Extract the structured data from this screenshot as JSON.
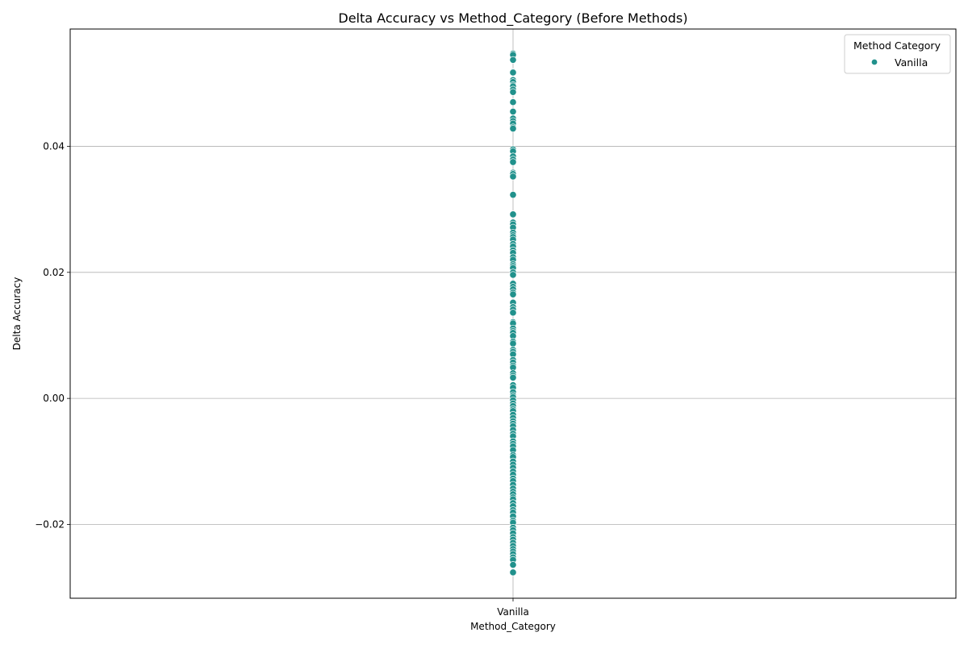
{
  "chart_data": {
    "type": "scatter",
    "title": "Delta Accuracy vs Method_Category (Before Methods)",
    "xlabel": "Method_Category",
    "ylabel": "Delta Accuracy",
    "categories": [
      "Vanilla"
    ],
    "ylim": [
      -0.0317,
      0.0586
    ],
    "yticks": [
      -0.02,
      0.0,
      0.02,
      0.04
    ],
    "ytick_labels": [
      "−0.02",
      "0.00",
      "0.02",
      "0.04"
    ],
    "grid": true,
    "legend": {
      "title": "Method Category",
      "placement": "top-right",
      "entries": [
        "Vanilla"
      ]
    },
    "series": [
      {
        "name": "Vanilla",
        "color": "#21918c",
        "category": "Vanilla",
        "values": [
          0.0547,
          0.0545,
          0.0537,
          0.0518,
          0.0517,
          0.0505,
          0.0502,
          0.0497,
          0.0495,
          0.049,
          0.0486,
          0.047,
          0.0455,
          0.0444,
          0.044,
          0.0436,
          0.043,
          0.0428,
          0.0395,
          0.0392,
          0.0384,
          0.0379,
          0.0375,
          0.0358,
          0.0356,
          0.0352,
          0.0323,
          0.0292,
          0.0279,
          0.0276,
          0.0271,
          0.0263,
          0.0259,
          0.0256,
          0.0252,
          0.0245,
          0.0241,
          0.0235,
          0.0231,
          0.0224,
          0.022,
          0.0213,
          0.021,
          0.0207,
          0.02,
          0.0196,
          0.0182,
          0.0177,
          0.0173,
          0.0168,
          0.0165,
          0.0152,
          0.0145,
          0.0141,
          0.0136,
          0.0121,
          0.0119,
          0.0111,
          0.0107,
          0.0104,
          0.0099,
          0.009,
          0.0087,
          0.0077,
          0.0074,
          0.007,
          0.0061,
          0.0057,
          0.0052,
          0.0049,
          0.004,
          0.0036,
          0.0033,
          0.0021,
          0.0017,
          0.001,
          0.0005,
          0.0002,
          -0.0003,
          -0.0008,
          -0.0012,
          -0.0017,
          -0.002,
          -0.0026,
          -0.0031,
          -0.0036,
          -0.004,
          -0.0044,
          -0.005,
          -0.0056,
          -0.006,
          -0.0068,
          -0.0072,
          -0.0076,
          -0.0082,
          -0.009,
          -0.0093,
          -0.01,
          -0.0105,
          -0.011,
          -0.0116,
          -0.0121,
          -0.0127,
          -0.0131,
          -0.0137,
          -0.0143,
          -0.0148,
          -0.0152,
          -0.0157,
          -0.016,
          -0.0166,
          -0.0171,
          -0.0177,
          -0.0181,
          -0.0187,
          -0.0194,
          -0.0197,
          -0.0205,
          -0.0209,
          -0.0214,
          -0.022,
          -0.0224,
          -0.0229,
          -0.0234,
          -0.0239,
          -0.0243,
          -0.0247,
          -0.0252,
          -0.0256,
          -0.0264,
          -0.0276
        ]
      }
    ]
  }
}
